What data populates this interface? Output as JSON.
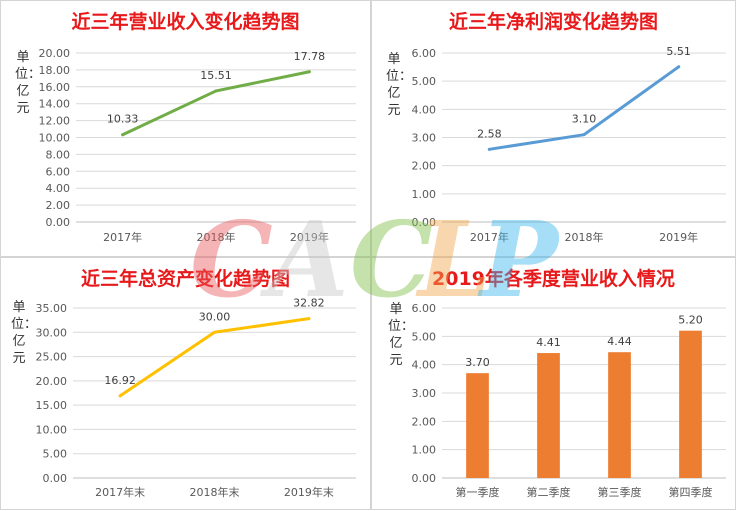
{
  "watermark": {
    "text": "CACLP",
    "colors": [
      "#e8585a",
      "#c7c7c7",
      "#7fbf48",
      "#f2a64b",
      "#38b6ec"
    ]
  },
  "chart_data": [
    {
      "type": "line",
      "title": "近三年营业收入变化趋势图",
      "ylabel": "单位：亿元",
      "categories": [
        "2017年",
        "2018年",
        "2019年"
      ],
      "series": [
        {
          "values": [
            10.33,
            15.51,
            17.78
          ]
        }
      ],
      "data_labels": [
        "10.33",
        "15.51",
        "17.78"
      ],
      "ylim": [
        0,
        20
      ],
      "yticks": [
        "0.00",
        "2.00",
        "4.00",
        "6.00",
        "8.00",
        "10.00",
        "12.00",
        "14.00",
        "16.00",
        "18.00",
        "20.00"
      ],
      "color": "#70ad47",
      "grid": true
    },
    {
      "type": "line",
      "title": "近三年净利润变化趋势图",
      "ylabel": "单位：亿元",
      "categories": [
        "2017年",
        "2018年",
        "2019年"
      ],
      "series": [
        {
          "values": [
            2.58,
            3.1,
            5.51
          ]
        }
      ],
      "data_labels": [
        "2.58",
        "3.10",
        "5.51"
      ],
      "ylim": [
        0,
        6
      ],
      "yticks": [
        "0.00",
        "1.00",
        "2.00",
        "3.00",
        "4.00",
        "5.00",
        "6.00"
      ],
      "color": "#5b9bd5",
      "grid": true
    },
    {
      "type": "line",
      "title": "近三年总资产变化趋势图",
      "ylabel": "单位：亿元",
      "categories": [
        "2017年末",
        "2018年末",
        "2019年末"
      ],
      "series": [
        {
          "values": [
            16.92,
            30.0,
            32.82
          ]
        }
      ],
      "data_labels": [
        "16.92",
        "30.00",
        "32.82"
      ],
      "ylim": [
        0,
        35
      ],
      "yticks": [
        "0.00",
        "5.00",
        "10.00",
        "15.00",
        "20.00",
        "25.00",
        "30.00",
        "35.00"
      ],
      "color": "#ffc000",
      "grid": true
    },
    {
      "type": "bar",
      "title": "2019年各季度营业收入情况",
      "ylabel": "单位：亿元",
      "categories": [
        "第一季度",
        "第二季度",
        "第三季度",
        "第四季度"
      ],
      "series": [
        {
          "values": [
            3.7,
            4.41,
            4.44,
            5.2
          ]
        }
      ],
      "data_labels": [
        "3.70",
        "4.41",
        "4.44",
        "5.20"
      ],
      "ylim": [
        0,
        6
      ],
      "yticks": [
        "0.00",
        "1.00",
        "2.00",
        "3.00",
        "4.00",
        "5.00",
        "6.00"
      ],
      "color": "#ed7d31",
      "grid": true
    }
  ]
}
